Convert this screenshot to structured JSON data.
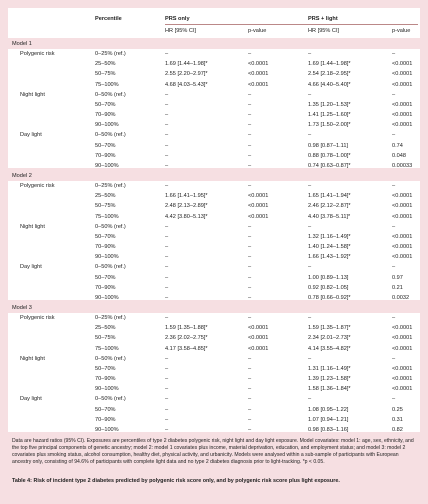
{
  "header": {
    "percentile": "Percentile",
    "prs_only": "PRS only",
    "prs_light": "PRS + light",
    "sub": [
      "HR [95% CI]",
      "p-value",
      "HR [95% CI]",
      "p-value"
    ]
  },
  "models": [
    {
      "label": "Model 1",
      "groups": [
        {
          "label": "Polygenic risk",
          "rows": [
            [
              "0–25% (ref.)",
              "–",
              "–",
              "–",
              "–"
            ],
            [
              "25–50%",
              "1.69 [1.44–1.98]*",
              "<0.0001",
              "1.69 [1.44–1.98]*",
              "<0.0001"
            ],
            [
              "50–75%",
              "2.55 [2.20–2.97]*",
              "<0.0001",
              "2.54 [2.18–2.95]*",
              "<0.0001"
            ],
            [
              "75–100%",
              "4.68 [4.03–5.43]*",
              "<0.0001",
              "4.66 [4.40–5.40]*",
              "<0.0001"
            ]
          ]
        },
        {
          "label": "Night light",
          "rows": [
            [
              "0–50% (ref.)",
              "–",
              "–",
              "–",
              "–"
            ],
            [
              "50–70%",
              "–",
              "–",
              "1.35 [1.20–1.53]*",
              "<0.0001"
            ],
            [
              "70–90%",
              "–",
              "–",
              "1.41 [1.25–1.60]*",
              "<0.0001"
            ],
            [
              "90–100%",
              "–",
              "–",
              "1.73 [1.50–2.00]*",
              "<0.0001"
            ]
          ]
        },
        {
          "label": "Day light",
          "rows": [
            [
              "0–50% (ref.)",
              "–",
              "–",
              "–",
              "–"
            ],
            [
              "50–70%",
              "–",
              "–",
              "0.98 [0.87–1.11]",
              "0.74"
            ],
            [
              "70–90%",
              "–",
              "–",
              "0.88 [0.78–1.00]*",
              "0.048"
            ],
            [
              "90–100%",
              "–",
              "–",
              "0.74 [0.63–0.87]*",
              "0.00033"
            ]
          ]
        }
      ]
    },
    {
      "label": "Model 2",
      "groups": [
        {
          "label": "Polygenic risk",
          "rows": [
            [
              "0–25% (ref.)",
              "–",
              "–",
              "–",
              "–"
            ],
            [
              "25–50%",
              "1.66 [1.41–1.95]*",
              "<0.0001",
              "1.65 [1.41–1.94]*",
              "<0.0001"
            ],
            [
              "50–75%",
              "2.48 [2.13–2.89]*",
              "<0.0001",
              "2.46 [2.12–2.87]*",
              "<0.0001"
            ],
            [
              "75–100%",
              "4.42 [3.80–5.13]*",
              "<0.0001",
              "4.40 [3.78–5.11]*",
              "<0.0001"
            ]
          ]
        },
        {
          "label": "Night light",
          "rows": [
            [
              "0–50% (ref.)",
              "–",
              "–",
              "–",
              "–"
            ],
            [
              "50–70%",
              "–",
              "–",
              "1.32 [1.16–1.49]*",
              "<0.0001"
            ],
            [
              "70–90%",
              "–",
              "–",
              "1.40 [1.24–1.58]*",
              "<0.0001"
            ],
            [
              "90–100%",
              "–",
              "–",
              "1.66 [1.43–1.92]*",
              "<0.0001"
            ]
          ]
        },
        {
          "label": "Day light",
          "rows": [
            [
              "0–50% (ref.)",
              "–",
              "–",
              "–",
              "–"
            ],
            [
              "50–70%",
              "–",
              "–",
              "1.00 [0.89–1.13]",
              "0.97"
            ],
            [
              "70–90%",
              "–",
              "–",
              "0.92 [0.82–1.05]",
              "0.21"
            ],
            [
              "90–100%",
              "–",
              "–",
              "0.78 [0.66–0.92]*",
              "0.0032"
            ]
          ]
        }
      ]
    },
    {
      "label": "Model 3",
      "groups": [
        {
          "label": "Polygenic risk",
          "rows": [
            [
              "0–25% (ref.)",
              "–",
              "–",
              "–",
              "–"
            ],
            [
              "25–50%",
              "1.59 [1.35–1.88]*",
              "<0.0001",
              "1.59 [1.35–1.87]*",
              "<0.0001"
            ],
            [
              "50–75%",
              "2.36 [2.02–2.75]*",
              "<0.0001",
              "2.34 [2.01–2.73]*",
              "<0.0001"
            ],
            [
              "75–100%",
              "4.17 [3.58–4.85]*",
              "<0.0001",
              "4.14 [3.55–4.82]*",
              "<0.0001"
            ]
          ]
        },
        {
          "label": "Night light",
          "rows": [
            [
              "0–50% (ref.)",
              "–",
              "–",
              "–",
              "–"
            ],
            [
              "50–70%",
              "–",
              "–",
              "1.31 [1.16–1.49]*",
              "<0.0001"
            ],
            [
              "70–90%",
              "–",
              "–",
              "1.39 [1.23–1.58]*",
              "<0.0001"
            ],
            [
              "90–100%",
              "–",
              "–",
              "1.58 [1.36–1.84]*",
              "<0.0001"
            ]
          ]
        },
        {
          "label": "Day light",
          "rows": [
            [
              "0–50% (ref.)",
              "–",
              "–",
              "–",
              "–"
            ],
            [
              "50–70%",
              "–",
              "–",
              "1.08 [0.95–1.22]",
              "0.25"
            ],
            [
              "70–90%",
              "–",
              "–",
              "1.07 [0.94–1.21]",
              "0.31"
            ],
            [
              "90–100%",
              "–",
              "–",
              "0.98 [0.83–1.16]",
              "0.82"
            ]
          ]
        }
      ]
    }
  ],
  "footnote": "Data are hazard ratios (95% CI). Exposures are percentiles of type 2 diabetes polygenic risk, night light and day light exposure. Model covariates: model 1: age, sex, ethnicity, and the top five principal components of genetic ancestry; model 2: model 1 covariates plus income, material deprivation, education, and employment status; and model 3: model 2 covariates plus smoking status, alcohol consumption, healthy diet, physical activity, and urbanicity. Models were analysed within a sub-sample of participants with European ancestry only, consisting of 94.6% of participants with complete light data and no type 2 diabetes diagnosis prior to light-tracking. *p < 0.05.",
  "caption": "Table 4: Risk of incident type 2 diabetes predicted by polygenic risk score only, and by polygenic risk score plus light exposure."
}
